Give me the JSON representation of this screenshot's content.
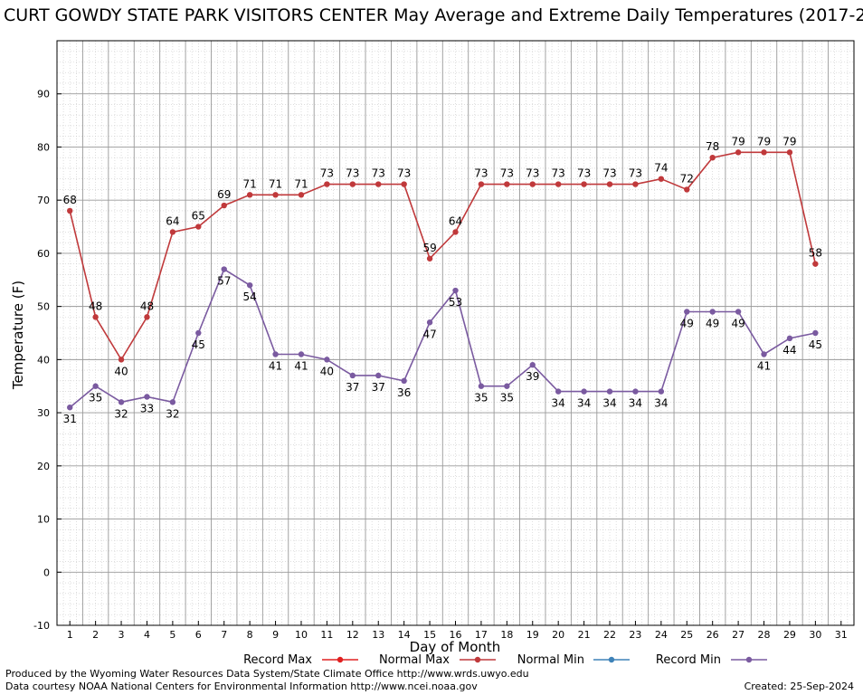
{
  "chart_data": {
    "type": "line",
    "title": "CURT GOWDY STATE PARK VISITORS CENTER May Average and Extreme Daily Temperatures (2017-2",
    "xlabel": "Day of Month",
    "ylabel": "Temperature (F)",
    "xlim": [
      0.5,
      31.5
    ],
    "ylim": [
      -10,
      100
    ],
    "x_ticks": [
      1,
      2,
      3,
      4,
      5,
      6,
      7,
      8,
      9,
      10,
      11,
      12,
      13,
      14,
      15,
      16,
      17,
      18,
      19,
      20,
      21,
      22,
      23,
      24,
      25,
      26,
      27,
      28,
      29,
      30,
      31
    ],
    "y_ticks": [
      -10,
      0,
      10,
      20,
      30,
      40,
      50,
      60,
      70,
      80,
      90
    ],
    "grid": true,
    "legend_position": "bottom",
    "legend": [
      "Record Max",
      "Normal Max",
      "Normal Min",
      "Record Min"
    ],
    "series": [
      {
        "name": "Normal Max",
        "color": "#c0393b",
        "x": [
          1,
          2,
          3,
          4,
          5,
          6,
          7,
          8,
          9,
          10,
          11,
          12,
          13,
          14,
          15,
          16,
          17,
          18,
          19,
          20,
          21,
          22,
          23,
          24,
          25,
          26,
          27,
          28,
          29,
          30
        ],
        "values": [
          68,
          48,
          40,
          48,
          64,
          65,
          69,
          71,
          71,
          71,
          73,
          73,
          73,
          73,
          59,
          64,
          73,
          73,
          73,
          73,
          73,
          73,
          73,
          74,
          72,
          78,
          79,
          79,
          79,
          58
        ]
      },
      {
        "name": "Record Min",
        "color": "#7a5aa0",
        "x": [
          1,
          2,
          3,
          4,
          5,
          6,
          7,
          8,
          9,
          10,
          11,
          12,
          13,
          14,
          15,
          16,
          17,
          18,
          19,
          20,
          21,
          22,
          23,
          24,
          25,
          26,
          27,
          28,
          29,
          30
        ],
        "values": [
          31,
          35,
          32,
          33,
          32,
          45,
          57,
          54,
          41,
          41,
          40,
          37,
          37,
          36,
          47,
          53,
          35,
          35,
          39,
          34,
          34,
          34,
          34,
          34,
          49,
          49,
          49,
          41,
          44,
          45
        ]
      }
    ]
  },
  "legend_colors": {
    "record_max": "#e02020",
    "normal_max": "#c0393b",
    "normal_min": "#3e82b8",
    "record_min": "#7a5aa0"
  },
  "footer": {
    "produced_by": "Produced by the Wyoming Water Resources Data System/State Climate Office http://www.wrds.uwyo.edu",
    "data_courtesy": "Data courtesy NOAA National Centers for Environmental Information http://www.ncei.noaa.gov",
    "created": "Created:  25-Sep-2024"
  }
}
